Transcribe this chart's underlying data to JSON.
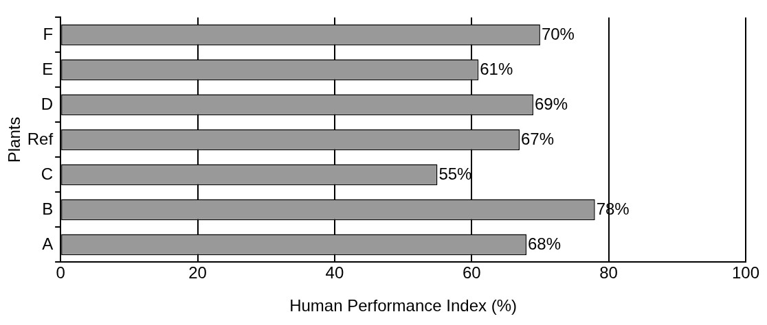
{
  "chart_data": {
    "type": "bar",
    "orientation": "horizontal",
    "categories": [
      "F",
      "E",
      "D",
      "Ref",
      "C",
      "B",
      "A"
    ],
    "values": [
      70,
      61,
      69,
      67,
      55,
      78,
      68
    ],
    "value_labels": [
      "70%",
      "61%",
      "69%",
      "67%",
      "55%",
      "78%",
      "68%"
    ],
    "color": "#999999",
    "xlim": [
      0,
      100
    ],
    "xticks": [
      0,
      20,
      40,
      60,
      80,
      100
    ],
    "grid": "x",
    "xlabel": "Human Performance Index (%)",
    "ylabel": "Plants"
  }
}
